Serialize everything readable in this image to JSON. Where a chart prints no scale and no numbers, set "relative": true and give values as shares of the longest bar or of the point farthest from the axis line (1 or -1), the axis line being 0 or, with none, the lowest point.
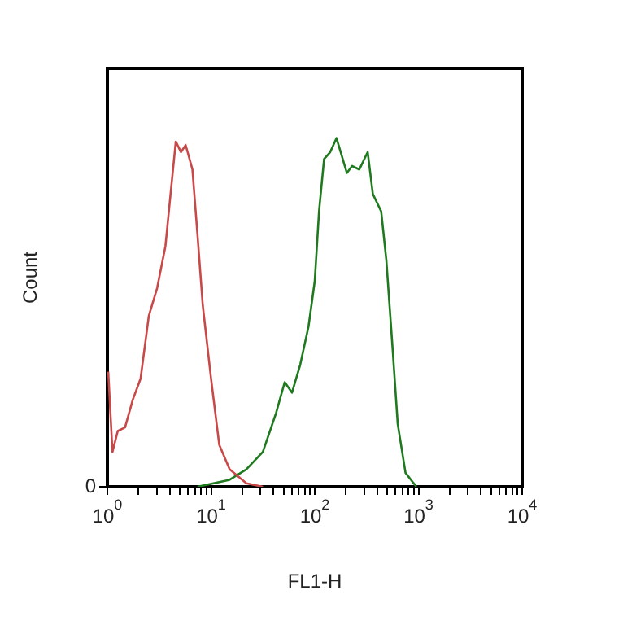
{
  "chart_data": {
    "type": "line",
    "xlabel": "FL1-H",
    "ylabel": "Count",
    "log": "x",
    "relative": true,
    "marker": "none",
    "line_style": "solid",
    "grid": false,
    "xlim": [
      1,
      10000
    ],
    "xticks": [
      {
        "value": 1,
        "label": "10$^{0}$"
      },
      {
        "value": 2,
        "label": null
      },
      {
        "value": 3,
        "label": null
      },
      {
        "value": 4,
        "label": null
      },
      {
        "value": 5,
        "label": null
      },
      {
        "value": 6,
        "label": null
      },
      {
        "value": 7,
        "label": null
      },
      {
        "value": 8,
        "label": null
      },
      {
        "value": 9,
        "label": null
      },
      {
        "value": 10,
        "label": "10$^{1}$"
      },
      {
        "value": 20,
        "label": null
      },
      {
        "value": 30,
        "label": null
      },
      {
        "value": 40,
        "label": null
      },
      {
        "value": 50,
        "label": null
      },
      {
        "value": 60,
        "label": null
      },
      {
        "value": 70,
        "label": null
      },
      {
        "value": 80,
        "label": null
      },
      {
        "value": 90,
        "label": null
      },
      {
        "value": 100,
        "label": "10$^{2}$"
      },
      {
        "value": 200,
        "label": null
      },
      {
        "value": 300,
        "label": null
      },
      {
        "value": 400,
        "label": null
      },
      {
        "value": 500,
        "label": null
      },
      {
        "value": 600,
        "label": null
      },
      {
        "value": 700,
        "label": null
      },
      {
        "value": 800,
        "label": null
      },
      {
        "value": 900,
        "label": null
      },
      {
        "value": 1000,
        "label": "10$^{3}$"
      },
      {
        "value": 2000,
        "label": null
      },
      {
        "value": 3000,
        "label": null
      },
      {
        "value": 4000,
        "label": null
      },
      {
        "value": 5000,
        "label": null
      },
      {
        "value": 6000,
        "label": null
      },
      {
        "value": 7000,
        "label": null
      },
      {
        "value": 8000,
        "label": null
      },
      {
        "value": 9000,
        "label": null
      },
      {
        "value": 10000,
        "label": "10$^{4}$"
      }
    ],
    "annotations": [
      "0"
    ],
    "series": [
      {
        "color": "#c94848",
        "x": [
          1.02,
          1.12,
          1.26,
          1.48,
          1.76,
          2.09,
          2.51,
          3.02,
          3.63,
          4.07,
          4.57,
          5.13,
          5.69,
          6.61,
          7.41,
          8.32,
          10,
          12,
          15.1,
          21.9,
          31.6
        ],
        "values": [
          0.33,
          0.1,
          0.16,
          0.17,
          0.25,
          0.31,
          0.49,
          0.57,
          0.69,
          0.84,
          0.99,
          0.96,
          0.98,
          0.91,
          0.72,
          0.52,
          0.31,
          0.12,
          0.05,
          0.01,
          0
        ]
      },
      {
        "color": "#1f7a1f",
        "x": [
          7.4,
          15.1,
          21.9,
          31.6,
          42.2,
          51.3,
          60.3,
          72.4,
          87.1,
          100,
          110,
          123,
          141,
          162,
          182,
          204,
          229,
          269,
          324,
          363,
          437,
          490,
          562,
          631,
          750,
          955
        ],
        "values": [
          0,
          0.02,
          0.05,
          0.1,
          0.21,
          0.3,
          0.27,
          0.35,
          0.46,
          0.59,
          0.79,
          0.94,
          0.96,
          1,
          0.95,
          0.9,
          0.92,
          0.91,
          0.96,
          0.84,
          0.79,
          0.65,
          0.4,
          0.18,
          0.04,
          0
        ]
      }
    ]
  }
}
